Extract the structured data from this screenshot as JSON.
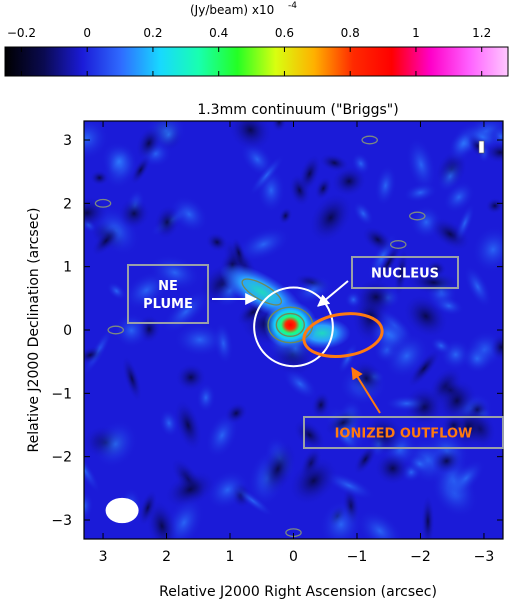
{
  "colorbar": {
    "unit_label": "(Jy/beam)  x10",
    "unit_exponent": "-4",
    "ticks": [
      {
        "value": -0.2,
        "label": "−0.2"
      },
      {
        "value": 0,
        "label": "0"
      },
      {
        "value": 0.2,
        "label": "0.2"
      },
      {
        "value": 0.4,
        "label": "0.4"
      },
      {
        "value": 0.6,
        "label": "0.6"
      },
      {
        "value": 0.8,
        "label": "0.8"
      },
      {
        "value": 1,
        "label": "1"
      },
      {
        "value": 1.2,
        "label": "1.2"
      }
    ],
    "range": [
      -0.25,
      1.28
    ],
    "colormap": [
      "#000000",
      "#0a0a50",
      "#1b1bd8",
      "#2f6cff",
      "#18d8ff",
      "#18ffb0",
      "#24ff24",
      "#d8ff10",
      "#ffb000",
      "#ff2a00",
      "#ff0000",
      "#ff00c8",
      "#ff60ff",
      "#ffc8ff"
    ]
  },
  "chart_data": {
    "type": "heatmap",
    "title": "1.3mm continuum (\"Briggs\")",
    "xlabel": "Relative J2000 Right Ascension (arcsec)",
    "ylabel": "Relative J2000 Declination (arcsec)",
    "xlim": [
      3.3,
      -3.3
    ],
    "ylim": [
      -3.3,
      3.3
    ],
    "x_ticks": [
      {
        "value": 3,
        "label": "3"
      },
      {
        "value": 2,
        "label": "2"
      },
      {
        "value": 1,
        "label": "1"
      },
      {
        "value": 0,
        "label": "0"
      },
      {
        "value": -1,
        "label": "−1"
      },
      {
        "value": -2,
        "label": "−2"
      },
      {
        "value": -3,
        "label": "−3"
      }
    ],
    "y_ticks": [
      {
        "value": 3,
        "label": "3"
      },
      {
        "value": 2,
        "label": "2"
      },
      {
        "value": 1,
        "label": "1"
      },
      {
        "value": 0,
        "label": "0"
      },
      {
        "value": -1,
        "label": "−1"
      },
      {
        "value": -2,
        "label": "−2"
      },
      {
        "value": -3,
        "label": "−3"
      }
    ],
    "emission": [
      {
        "ra": 0.05,
        "dec": 0.08,
        "peak": 1.0
      },
      {
        "ra": 0.5,
        "dec": 0.6,
        "peak": 0.35
      },
      {
        "ra": -0.45,
        "dec": -0.05,
        "peak": 0.3
      }
    ],
    "annotations": [
      {
        "id": "ne-plume",
        "label_lines": [
          "NE",
          "PLUME"
        ],
        "text_color": "#ffffff",
        "border_color": "#9aa0a8"
      },
      {
        "id": "nucleus",
        "label_lines": [
          "NUCLEUS"
        ],
        "text_color": "#ffffff",
        "border_color": "#9aa0a8"
      },
      {
        "id": "ionized-outflow",
        "label_lines": [
          "IONIZED OUTFLOW"
        ],
        "text_color": "#ff7a10",
        "border_color": "#9aa0a8"
      }
    ],
    "circle": {
      "ra": 0.0,
      "dec": 0.05,
      "radius": 0.62,
      "color": "#ffffff"
    },
    "ellipse": {
      "ra": -0.78,
      "dec": -0.08,
      "semi_major": 0.62,
      "semi_minor": 0.33,
      "color": "#ff7a10"
    },
    "beam": {
      "ra": 2.7,
      "dec": -2.85,
      "semi_major": 0.26,
      "semi_minor": 0.2,
      "color": "#ffffff"
    },
    "grid": false,
    "legend": "none"
  }
}
